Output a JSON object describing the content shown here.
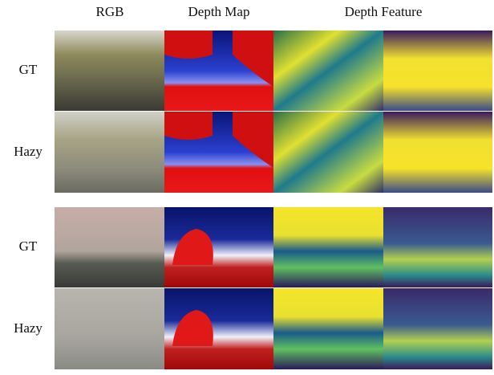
{
  "header": {
    "columns": [
      "RGB",
      "Depth Map",
      "Depth Feature"
    ]
  },
  "rows": [
    {
      "label": "GT"
    },
    {
      "label": "Hazy"
    },
    {
      "label": "GT"
    },
    {
      "label": "Hazy"
    }
  ]
}
